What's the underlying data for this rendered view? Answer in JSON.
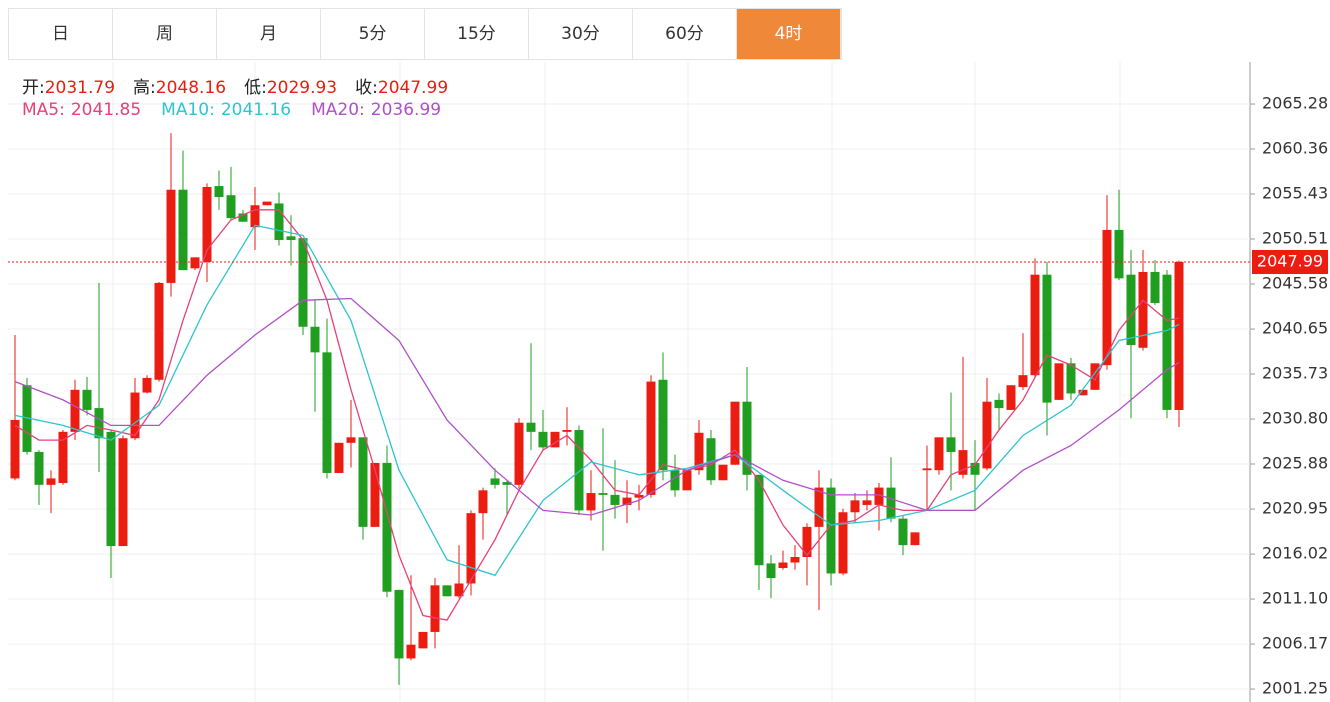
{
  "chart_data": {
    "type": "candlestick",
    "tabs": [
      "日",
      "周",
      "月",
      "5分",
      "15分",
      "30分",
      "60分",
      "4时"
    ],
    "active_tab": 7,
    "info": [
      {
        "label": "开:",
        "value": 2031.79
      },
      {
        "label": "高:",
        "value": 2048.16
      },
      {
        "label": "低:",
        "value": 2029.93
      },
      {
        "label": "收:",
        "value": 2047.99
      }
    ],
    "up_color": "#eb1c10",
    "down_color": "#1f9e1f",
    "ylim": [
      2000.05,
      2069.88
    ],
    "yticks": [
      2065.28,
      2060.36,
      2055.43,
      2050.51,
      2045.58,
      2040.65,
      2035.73,
      {
        "value": 2030.8,
        "label": "2030.80"
      },
      2025.88,
      2020.95,
      2016.02,
      {
        "value": 2011.1,
        "label": "2011.10"
      },
      2006.17,
      2001.25
    ],
    "grid": true,
    "last_price": 2047.99,
    "open": [
      2024.3,
      2034.5,
      2027.2,
      2023.6,
      2023.8,
      2029.4,
      2034.0,
      2032.0,
      2029.4,
      2016.9,
      2028.7,
      2033.7,
      2035.1,
      2045.7,
      2055.9,
      2047.3,
      2048.0,
      2056.3,
      2055.3,
      2053.3,
      2051.8,
      2054.2,
      2054.4,
      2050.8,
      2050.6,
      2040.9,
      2038.1,
      2024.9,
      2028.2,
      2028.8,
      2019.0,
      2026.0,
      2012.1,
      2004.6,
      2005.7,
      2007.5,
      2012.6,
      2011.4,
      2012.8,
      2020.5,
      2024.3,
      2023.9,
      2023.6,
      2030.4,
      2029.4,
      2027.7,
      2029.4,
      2029.6,
      2020.8,
      2022.7,
      2022.5,
      2021.4,
      2022.2,
      2022.5,
      2035.1,
      2025.2,
      2023.0,
      2025.2,
      2028.7,
      2024.1,
      2025.8,
      2032.7,
      2024.7,
      2015.0,
      2014.5,
      2015.1,
      2015.7,
      2019.0,
      2023.3,
      2013.9,
      2020.6,
      2021.4,
      2021.4,
      2023.3,
      2019.9,
      2017.0,
      2025.2,
      2025.2,
      2028.8,
      2024.7,
      2026.0,
      2025.4,
      2032.9,
      2031.8,
      2034.3,
      2035.6,
      2046.6,
      2032.9,
      2036.9,
      2033.4,
      2034.0,
      2036.7,
      2051.5,
      2046.6,
      2038.6,
      2046.9,
      2046.6,
      2031.79
    ],
    "high": [
      2040.0,
      2035.3,
      2027.4,
      2025.2,
      2029.6,
      2035.1,
      2035.4,
      2045.7,
      2029.6,
      2029.0,
      2035.3,
      2035.6,
      2045.8,
      2062.1,
      2060.2,
      2048.5,
      2056.6,
      2058.0,
      2058.4,
      2053.7,
      2056.2,
      2054.6,
      2055.6,
      2053.1,
      2050.6,
      2043.8,
      2041.8,
      2028.2,
      2032.9,
      2028.8,
      2026.0,
      2027.9,
      2012.1,
      2013.7,
      2007.5,
      2013.4,
      2012.6,
      2017.0,
      2020.8,
      2023.3,
      2025.4,
      2024.1,
      2030.9,
      2039.1,
      2031.8,
      2029.4,
      2032.1,
      2030.1,
      2025.2,
      2029.8,
      2026.3,
      2024.1,
      2023.6,
      2035.6,
      2038.1,
      2026.9,
      2025.2,
      2030.7,
      2029.6,
      2025.8,
      2032.7,
      2036.5,
      2024.7,
      2015.9,
      2016.4,
      2017.0,
      2019.4,
      2025.2,
      2024.3,
      2021.0,
      2022.7,
      2023.0,
      2023.8,
      2026.6,
      2020.3,
      2018.4,
      2027.9,
      2028.8,
      2033.7,
      2037.6,
      2028.5,
      2035.3,
      2033.6,
      2034.5,
      2040.2,
      2048.4,
      2048.0,
      2036.9,
      2037.5,
      2034.0,
      2036.9,
      2055.3,
      2055.9,
      2049.3,
      2049.3,
      2048.2,
      2047.1,
      2048.16
    ],
    "low": [
      2024.1,
      2026.9,
      2021.4,
      2020.5,
      2023.6,
      2028.5,
      2031.2,
      2025.0,
      2013.4,
      2016.9,
      2028.5,
      2033.6,
      2034.9,
      2044.2,
      2047.1,
      2047.1,
      2045.8,
      2053.7,
      2052.6,
      2052.4,
      2049.3,
      2054.2,
      2049.8,
      2047.6,
      2040.0,
      2031.6,
      2024.3,
      2024.9,
      2025.5,
      2017.6,
      2019.0,
      2011.3,
      2001.7,
      2004.4,
      2005.7,
      2005.7,
      2011.4,
      2011.2,
      2011.5,
      2017.6,
      2023.2,
      2020.3,
      2023.2,
      2027.4,
      2027.4,
      2027.7,
      2027.9,
      2020.3,
      2019.7,
      2016.4,
      2019.9,
      2019.4,
      2020.8,
      2022.2,
      2024.1,
      2022.3,
      2023.0,
      2024.7,
      2023.6,
      2024.1,
      2025.8,
      2023.0,
      2012.1,
      2011.2,
      2014.3,
      2014.3,
      2012.6,
      2009.9,
      2012.6,
      2013.7,
      2019.4,
      2020.8,
      2018.6,
      2019.5,
      2015.9,
      2017.0,
      2020.8,
      2024.7,
      2023.0,
      2024.3,
      2020.8,
      2025.2,
      2029.6,
      2031.8,
      2034.0,
      2035.3,
      2029.0,
      2032.9,
      2032.9,
      2033.4,
      2034.0,
      2036.2,
      2046.0,
      2030.9,
      2038.3,
      2043.3,
      2030.9,
      2029.93
    ],
    "close": [
      2030.7,
      2027.2,
      2023.6,
      2024.3,
      2029.4,
      2034.0,
      2031.8,
      2028.7,
      2016.9,
      2028.7,
      2033.7,
      2035.3,
      2045.7,
      2055.9,
      2047.1,
      2048.5,
      2056.2,
      2055.1,
      2052.8,
      2052.4,
      2054.2,
      2054.6,
      2050.4,
      2050.4,
      2040.9,
      2038.1,
      2024.9,
      2028.2,
      2028.8,
      2019.0,
      2026.0,
      2011.9,
      2004.6,
      2006.1,
      2007.5,
      2012.6,
      2011.4,
      2012.8,
      2020.5,
      2023.0,
      2023.6,
      2023.6,
      2030.4,
      2029.4,
      2027.7,
      2029.4,
      2029.6,
      2020.8,
      2022.7,
      2022.5,
      2021.4,
      2022.2,
      2022.5,
      2034.9,
      2025.2,
      2023.0,
      2025.2,
      2029.3,
      2024.1,
      2025.8,
      2032.7,
      2024.7,
      2014.8,
      2013.4,
      2015.1,
      2015.7,
      2019.0,
      2023.3,
      2013.9,
      2020.6,
      2021.9,
      2021.9,
      2023.3,
      2019.9,
      2017.0,
      2018.4,
      2025.4,
      2028.8,
      2027.2,
      2027.4,
      2024.7,
      2032.7,
      2032.0,
      2034.5,
      2035.6,
      2046.6,
      2032.6,
      2036.9,
      2033.6,
      2034.0,
      2036.9,
      2051.5,
      2046.2,
      2038.9,
      2046.9,
      2043.5,
      2031.8,
      2047.99
    ],
    "series": [
      {
        "name": "MA5:",
        "color": "#e8407a",
        "current": 2041.85,
        "x": [
          0,
          2,
          4,
          6,
          8,
          10,
          12,
          14,
          16,
          18,
          20,
          22,
          24,
          26,
          28,
          30,
          32,
          34,
          36,
          38,
          40,
          42,
          44,
          46,
          48,
          50,
          52,
          54,
          56,
          58,
          60,
          62,
          64,
          66,
          68,
          70,
          72,
          74,
          76,
          78,
          80,
          82,
          84,
          86,
          88,
          90,
          92,
          94,
          96,
          97
        ],
        "values": [
          2030.1,
          2028.5,
          2028.5,
          2030.1,
          2029.6,
          2029.0,
          2032.9,
          2041.6,
          2049.3,
          2052.6,
          2053.7,
          2053.7,
          2050.4,
          2043.8,
          2034.0,
          2025.2,
          2015.9,
          2009.3,
          2008.8,
          2013.2,
          2017.6,
          2023.0,
          2027.4,
          2029.0,
          2026.3,
          2023.0,
          2022.5,
          2025.8,
          2025.2,
          2025.8,
          2027.4,
          2024.1,
          2019.2,
          2015.9,
          2019.2,
          2019.7,
          2021.4,
          2020.8,
          2020.8,
          2024.7,
          2025.8,
          2029.6,
          2032.9,
          2037.8,
          2036.7,
          2035.1,
          2040.5,
          2043.8,
          2041.6,
          2041.85
        ]
      },
      {
        "name": "MA10:",
        "color": "#2ec4d0",
        "current": 2041.16,
        "x": [
          0,
          4,
          8,
          12,
          16,
          20,
          24,
          28,
          32,
          36,
          40,
          44,
          48,
          52,
          56,
          60,
          64,
          68,
          72,
          76,
          80,
          84,
          88,
          92,
          96,
          97
        ],
        "values": [
          2031.2,
          2030.1,
          2028.5,
          2032.3,
          2043.3,
          2052.0,
          2050.9,
          2041.6,
          2025.2,
          2015.4,
          2013.7,
          2021.9,
          2026.1,
          2024.7,
          2025.4,
          2026.9,
          2023.0,
          2019.2,
          2019.7,
          2020.8,
          2023.0,
          2029.0,
          2032.3,
          2039.4,
          2040.5,
          2041.16
        ]
      },
      {
        "name": "MA20:",
        "color": "#b050c8",
        "current": 2036.99,
        "x": [
          0,
          4,
          8,
          12,
          16,
          20,
          24,
          28,
          32,
          36,
          40,
          44,
          48,
          52,
          56,
          60,
          64,
          68,
          72,
          76,
          80,
          84,
          88,
          92,
          96,
          97
        ],
        "values": [
          2034.9,
          2032.9,
          2030.1,
          2030.1,
          2035.6,
          2040.0,
          2043.8,
          2044.0,
          2039.4,
          2030.7,
          2025.2,
          2020.8,
          2020.3,
          2021.9,
          2025.2,
          2026.9,
          2024.1,
          2022.5,
          2022.5,
          2020.8,
          2020.8,
          2025.2,
          2027.9,
          2031.8,
          2036.2,
          2036.99
        ]
      }
    ]
  }
}
